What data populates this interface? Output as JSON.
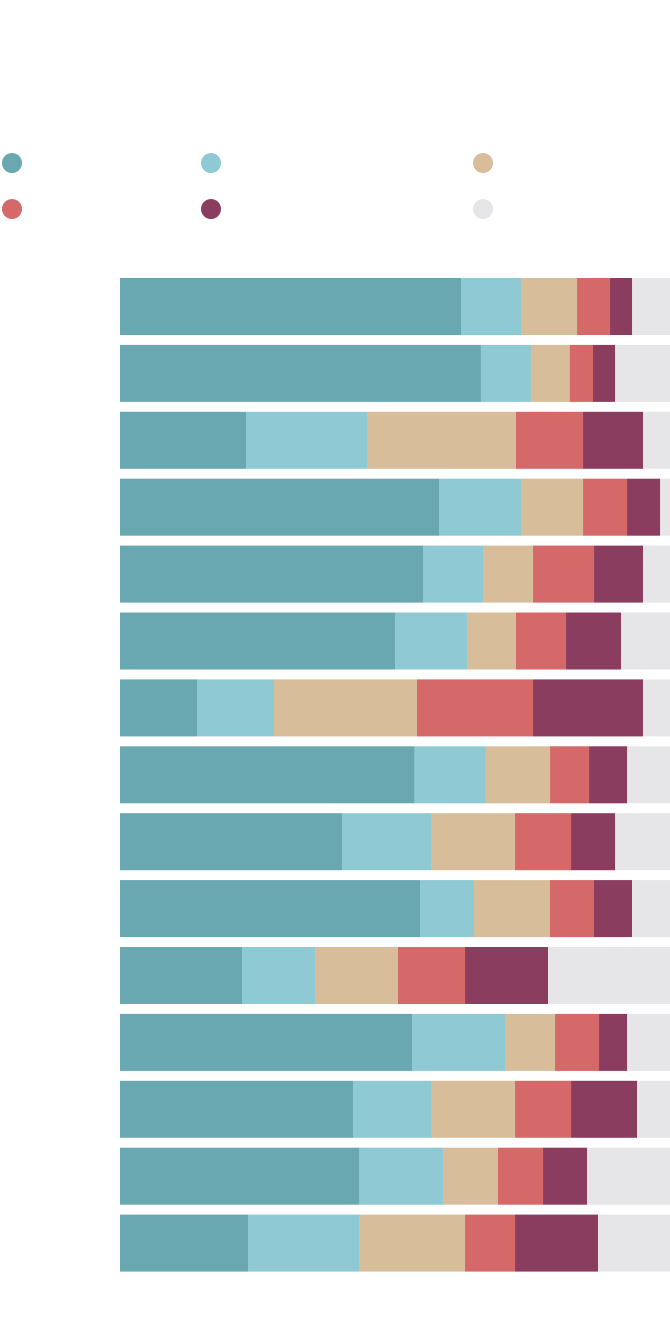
{
  "chart_data": {
    "type": "bar",
    "orientation": "horizontal",
    "stacked": true,
    "normalized_percent": true,
    "title": "",
    "xlabel": "",
    "ylabel": "",
    "xlim": [
      0,
      100
    ],
    "grid": false,
    "legend_position": "top",
    "categories": [
      "",
      "",
      "",
      "",
      "",
      "",
      "",
      "",
      "",
      "",
      "",
      "",
      "",
      "",
      ""
    ],
    "series": [
      {
        "color": "#6aa8b1",
        "values": [
          62.0,
          65.6,
          22.9,
          58.0,
          55.1,
          50.0,
          14.0,
          53.5,
          40.4,
          54.5,
          22.2,
          53.1,
          42.4,
          43.5,
          23.3
        ]
      },
      {
        "color": "#8fc9d3",
        "values": [
          10.9,
          9.1,
          22.0,
          14.9,
          10.9,
          13.1,
          14.0,
          12.9,
          16.2,
          9.8,
          13.3,
          16.9,
          14.2,
          15.3,
          20.2
        ]
      },
      {
        "color": "#d8bd9b",
        "values": [
          10.2,
          7.1,
          27.1,
          11.3,
          9.1,
          8.9,
          26.0,
          11.8,
          15.3,
          13.8,
          15.1,
          9.1,
          15.3,
          10.0,
          19.3
        ]
      },
      {
        "color": "#d56868",
        "values": [
          6.0,
          4.2,
          12.2,
          8.0,
          11.1,
          9.1,
          21.1,
          7.1,
          10.2,
          8.0,
          12.2,
          8.0,
          10.2,
          8.2,
          9.1
        ]
      },
      {
        "color": "#8b3d5f",
        "values": [
          4.0,
          4.0,
          10.9,
          6.0,
          8.9,
          10.0,
          20.0,
          6.9,
          8.0,
          6.9,
          15.1,
          5.1,
          12.0,
          8.0,
          15.1
        ]
      },
      {
        "color": "#e6e6e8",
        "values": [
          6.9,
          10.0,
          4.9,
          1.8,
          4.9,
          8.9,
          4.9,
          7.8,
          10.0,
          6.9,
          22.2,
          7.8,
          6.0,
          15.1,
          13.1
        ]
      }
    ]
  }
}
